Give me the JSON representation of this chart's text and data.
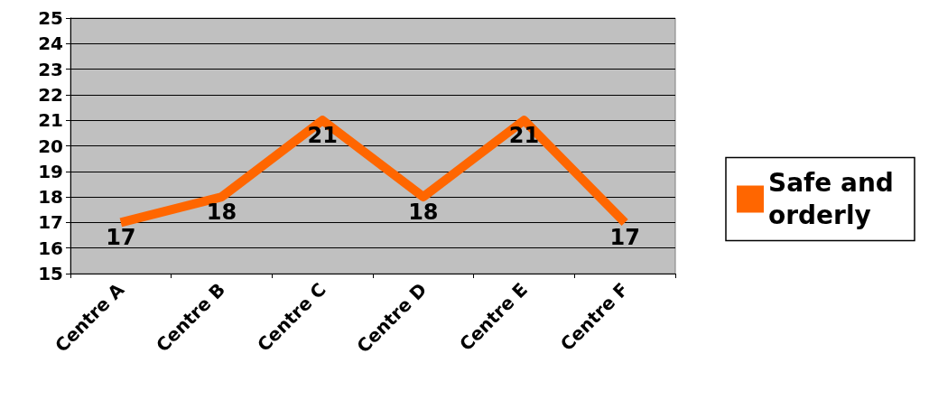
{
  "chart_data": {
    "type": "line",
    "categories": [
      "Centre A",
      "Centre B",
      "Centre C",
      "Centre D",
      "Centre E",
      "Centre F"
    ],
    "series": [
      {
        "name": "Safe and orderly",
        "color": "#ff6600",
        "values": [
          17,
          18,
          21,
          18,
          21,
          17
        ]
      }
    ],
    "ylim": [
      15,
      25
    ],
    "yticks": [
      15,
      16,
      17,
      18,
      19,
      20,
      21,
      22,
      23,
      24,
      25
    ],
    "grid": "y",
    "legend": "right",
    "data_labels": true
  }
}
